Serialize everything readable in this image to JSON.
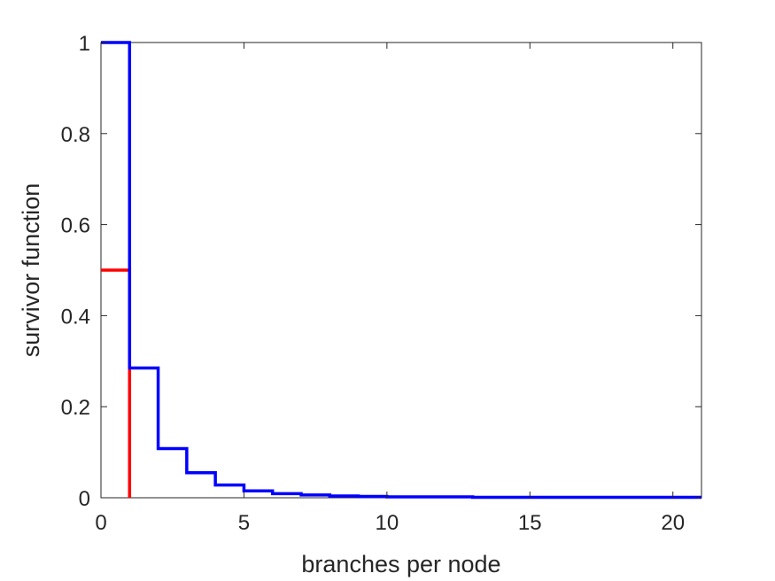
{
  "chart_data": {
    "type": "line",
    "step": true,
    "xlabel": "branches per node",
    "ylabel": "survivor function",
    "xlim": [
      0,
      21
    ],
    "ylim": [
      0,
      1
    ],
    "xticks": [
      0,
      5,
      10,
      15,
      20
    ],
    "xtick_labels": [
      "0",
      "5",
      "10",
      "15",
      "20"
    ],
    "yticks": [
      0,
      0.2,
      0.4,
      0.6,
      0.8,
      1
    ],
    "ytick_labels": [
      "0",
      "0.2",
      "0.4",
      "0.6",
      "0.8",
      "1"
    ],
    "grid": false,
    "legend": false,
    "series": [
      {
        "color": "#ff0000",
        "x": [
          0,
          1,
          1
        ],
        "y": [
          0.5,
          0.5,
          0
        ]
      },
      {
        "color": "#0000ff",
        "x": [
          0,
          1,
          1,
          2,
          2,
          3,
          3,
          4,
          4,
          5,
          5,
          6,
          6,
          7,
          7,
          8,
          8,
          9,
          9,
          10,
          10,
          13,
          13,
          21
        ],
        "y": [
          1,
          1,
          0.285,
          0.285,
          0.108,
          0.108,
          0.055,
          0.055,
          0.028,
          0.028,
          0.015,
          0.015,
          0.009,
          0.009,
          0.006,
          0.006,
          0.004,
          0.004,
          0.003,
          0.003,
          0.002,
          0.002,
          0.001,
          0.001
        ]
      }
    ]
  }
}
